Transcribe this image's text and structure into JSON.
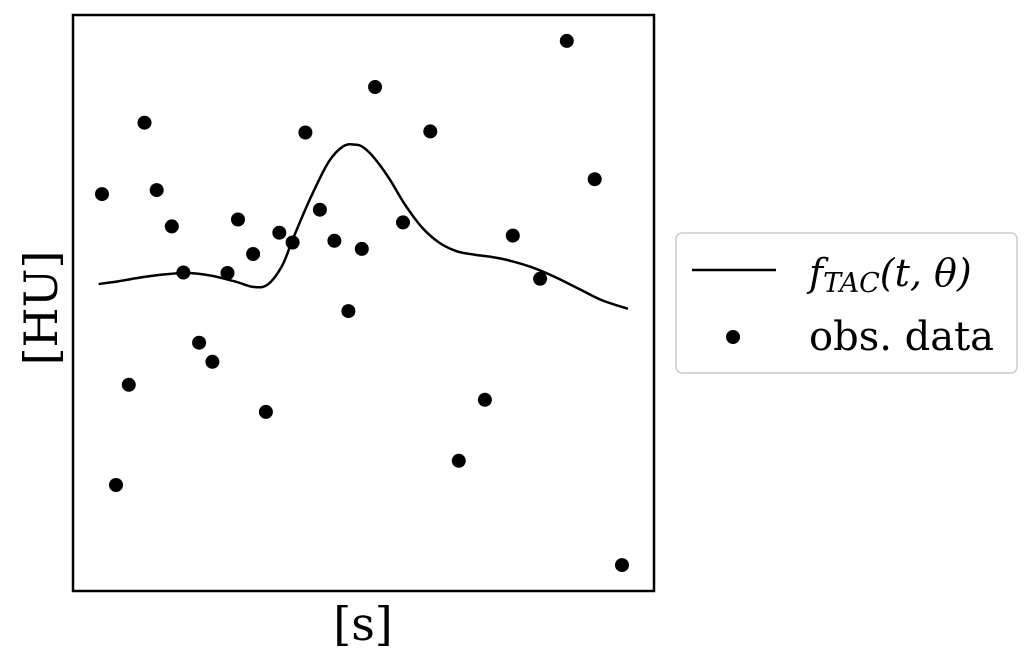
{
  "chart_data": {
    "type": "line+scatter",
    "xlabel": "[s]",
    "ylabel": "[HU]",
    "xticks": "none",
    "yticks": "none",
    "grid": false,
    "legend_placement": "outside-right-center",
    "xlim": [
      0,
      1
    ],
    "ylim": [
      0,
      1
    ],
    "series": [
      {
        "name": "f_TAC(t,θ)",
        "kind": "line",
        "color": "#000000",
        "x": [
          0.044,
          0.08,
          0.12,
          0.16,
          0.2,
          0.24,
          0.28,
          0.31,
          0.335,
          0.36,
          0.38,
          0.41,
          0.44,
          0.465,
          0.485,
          0.5,
          0.52,
          0.545,
          0.57,
          0.6,
          0.63,
          0.66,
          0.69,
          0.72,
          0.75,
          0.79,
          0.83,
          0.87,
          0.91,
          0.955
        ],
        "y": [
          0.533,
          0.538,
          0.545,
          0.55,
          0.552,
          0.547,
          0.537,
          0.528,
          0.532,
          0.565,
          0.615,
          0.685,
          0.745,
          0.772,
          0.775,
          0.77,
          0.75,
          0.715,
          0.673,
          0.632,
          0.605,
          0.59,
          0.584,
          0.58,
          0.574,
          0.562,
          0.545,
          0.525,
          0.505,
          0.49
        ]
      },
      {
        "name": "obs. data",
        "kind": "scatter",
        "color": "#000000",
        "x": [
          0.05,
          0.074,
          0.096,
          0.123,
          0.144,
          0.17,
          0.19,
          0.217,
          0.24,
          0.266,
          0.284,
          0.31,
          0.332,
          0.355,
          0.378,
          0.4,
          0.425,
          0.45,
          0.474,
          0.497,
          0.52,
          0.568,
          0.615,
          0.664,
          0.709,
          0.757,
          0.804,
          0.85,
          0.898,
          0.945
        ],
        "y": [
          0.689,
          0.184,
          0.358,
          0.813,
          0.696,
          0.633,
          0.553,
          0.431,
          0.398,
          0.552,
          0.645,
          0.585,
          0.311,
          0.622,
          0.605,
          0.796,
          0.662,
          0.608,
          0.486,
          0.594,
          0.875,
          0.64,
          0.798,
          0.226,
          0.332,
          0.617,
          0.542,
          0.955,
          0.715,
          0.045
        ]
      }
    ]
  },
  "legend": {
    "line_entry": {
      "main": "f",
      "sub": "TAC",
      "args": "(t, θ)"
    },
    "scatter_entry": "obs. data"
  },
  "colors": {
    "ink": "#000000",
    "legend_border": "#cccccc",
    "background": "#ffffff"
  }
}
